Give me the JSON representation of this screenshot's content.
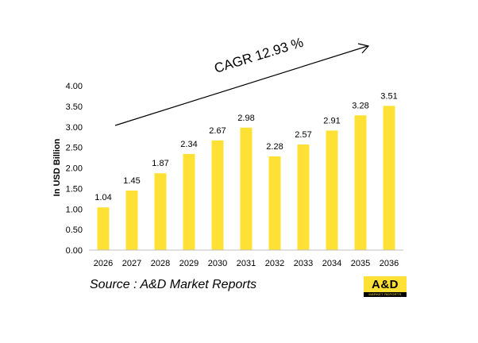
{
  "chart_data": {
    "type": "bar",
    "categories": [
      "2026",
      "2027",
      "2028",
      "2029",
      "2030",
      "2031",
      "2032",
      "2033",
      "2034",
      "2035",
      "2036"
    ],
    "values": [
      1.04,
      1.45,
      1.87,
      2.34,
      2.67,
      2.98,
      2.28,
      2.57,
      2.91,
      3.28,
      3.51
    ],
    "data_labels": [
      "1.04",
      "1.45",
      "1.87",
      "2.34",
      "2.67",
      "2.98",
      "2.28",
      "2.57",
      "2.91",
      "3.28",
      "3.51"
    ],
    "y_ticks": [
      "0.00",
      "0.50",
      "1.00",
      "1.50",
      "2.00",
      "2.50",
      "3.00",
      "3.50",
      "4.00"
    ],
    "ylabel": "In USD Billion",
    "xlabel": "",
    "title": "",
    "ylim": [
      0,
      4
    ],
    "grid": false,
    "bar_color": "#ffe135",
    "annotation": "CAGR 12.93 %"
  },
  "source_text": "Source : A&D Market Reports",
  "logo": {
    "main": "A&D",
    "sub": "MARKET REPORTS"
  }
}
